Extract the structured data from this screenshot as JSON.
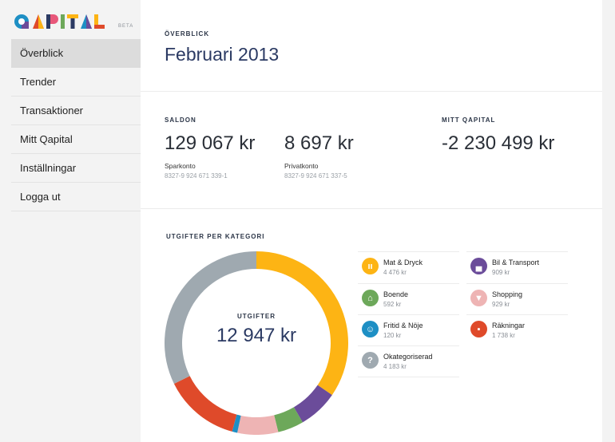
{
  "brand": {
    "name": "QAPITAL",
    "badge": "BETA"
  },
  "nav": [
    {
      "label": "Överblick",
      "active": true
    },
    {
      "label": "Trender",
      "active": false
    },
    {
      "label": "Transaktioner",
      "active": false
    },
    {
      "label": "Mitt Qapital",
      "active": false
    },
    {
      "label": "Inställningar",
      "active": false
    },
    {
      "label": "Logga ut",
      "active": false
    }
  ],
  "header": {
    "label": "ÖVERBLICK",
    "title": "Februari 2013"
  },
  "balances": {
    "label": "SALDON",
    "accounts": [
      {
        "amount": "129 067 kr",
        "name": "Sparkonto",
        "number": "8327-9 924 671 339-1"
      },
      {
        "amount": "8 697 kr",
        "name": "Privatkonto",
        "number": "8327-9 924 671 337-5"
      }
    ]
  },
  "qapital": {
    "label": "MITT QAPITAL",
    "amount": "-2 230 499 kr"
  },
  "expenses": {
    "label": "UTGIFTER PER KATEGORI",
    "center_label": "UTGIFTER",
    "total": "12 947 kr",
    "categories": [
      {
        "name": "Mat & Dryck",
        "amount": "4 476 kr",
        "value": 4476,
        "color": "#fdb414",
        "icon": "fork-knife-icon",
        "glyph": "ıı"
      },
      {
        "name": "Bil & Transport",
        "amount": "909 kr",
        "value": 909,
        "color": "#6b4c9a",
        "icon": "car-icon",
        "glyph": "▄"
      },
      {
        "name": "Boende",
        "amount": "592 kr",
        "value": 592,
        "color": "#6da85a",
        "icon": "house-icon",
        "glyph": "⌂"
      },
      {
        "name": "Shopping",
        "amount": "929 kr",
        "value": 929,
        "color": "#eeb4b4",
        "icon": "shirt-icon",
        "glyph": "▼"
      },
      {
        "name": "Fritid & Nöje",
        "amount": "120 kr",
        "value": 120,
        "color": "#1e8fc4",
        "icon": "smiley-icon",
        "glyph": "☺"
      },
      {
        "name": "Räkningar",
        "amount": "1 738 kr",
        "value": 1738,
        "color": "#df4a2a",
        "icon": "briefcase-icon",
        "glyph": "▪"
      },
      {
        "name": "Okategoriserad",
        "amount": "4 183 kr",
        "value": 4183,
        "color": "#9fa9b0",
        "icon": "question-icon",
        "glyph": "?"
      }
    ]
  }
}
